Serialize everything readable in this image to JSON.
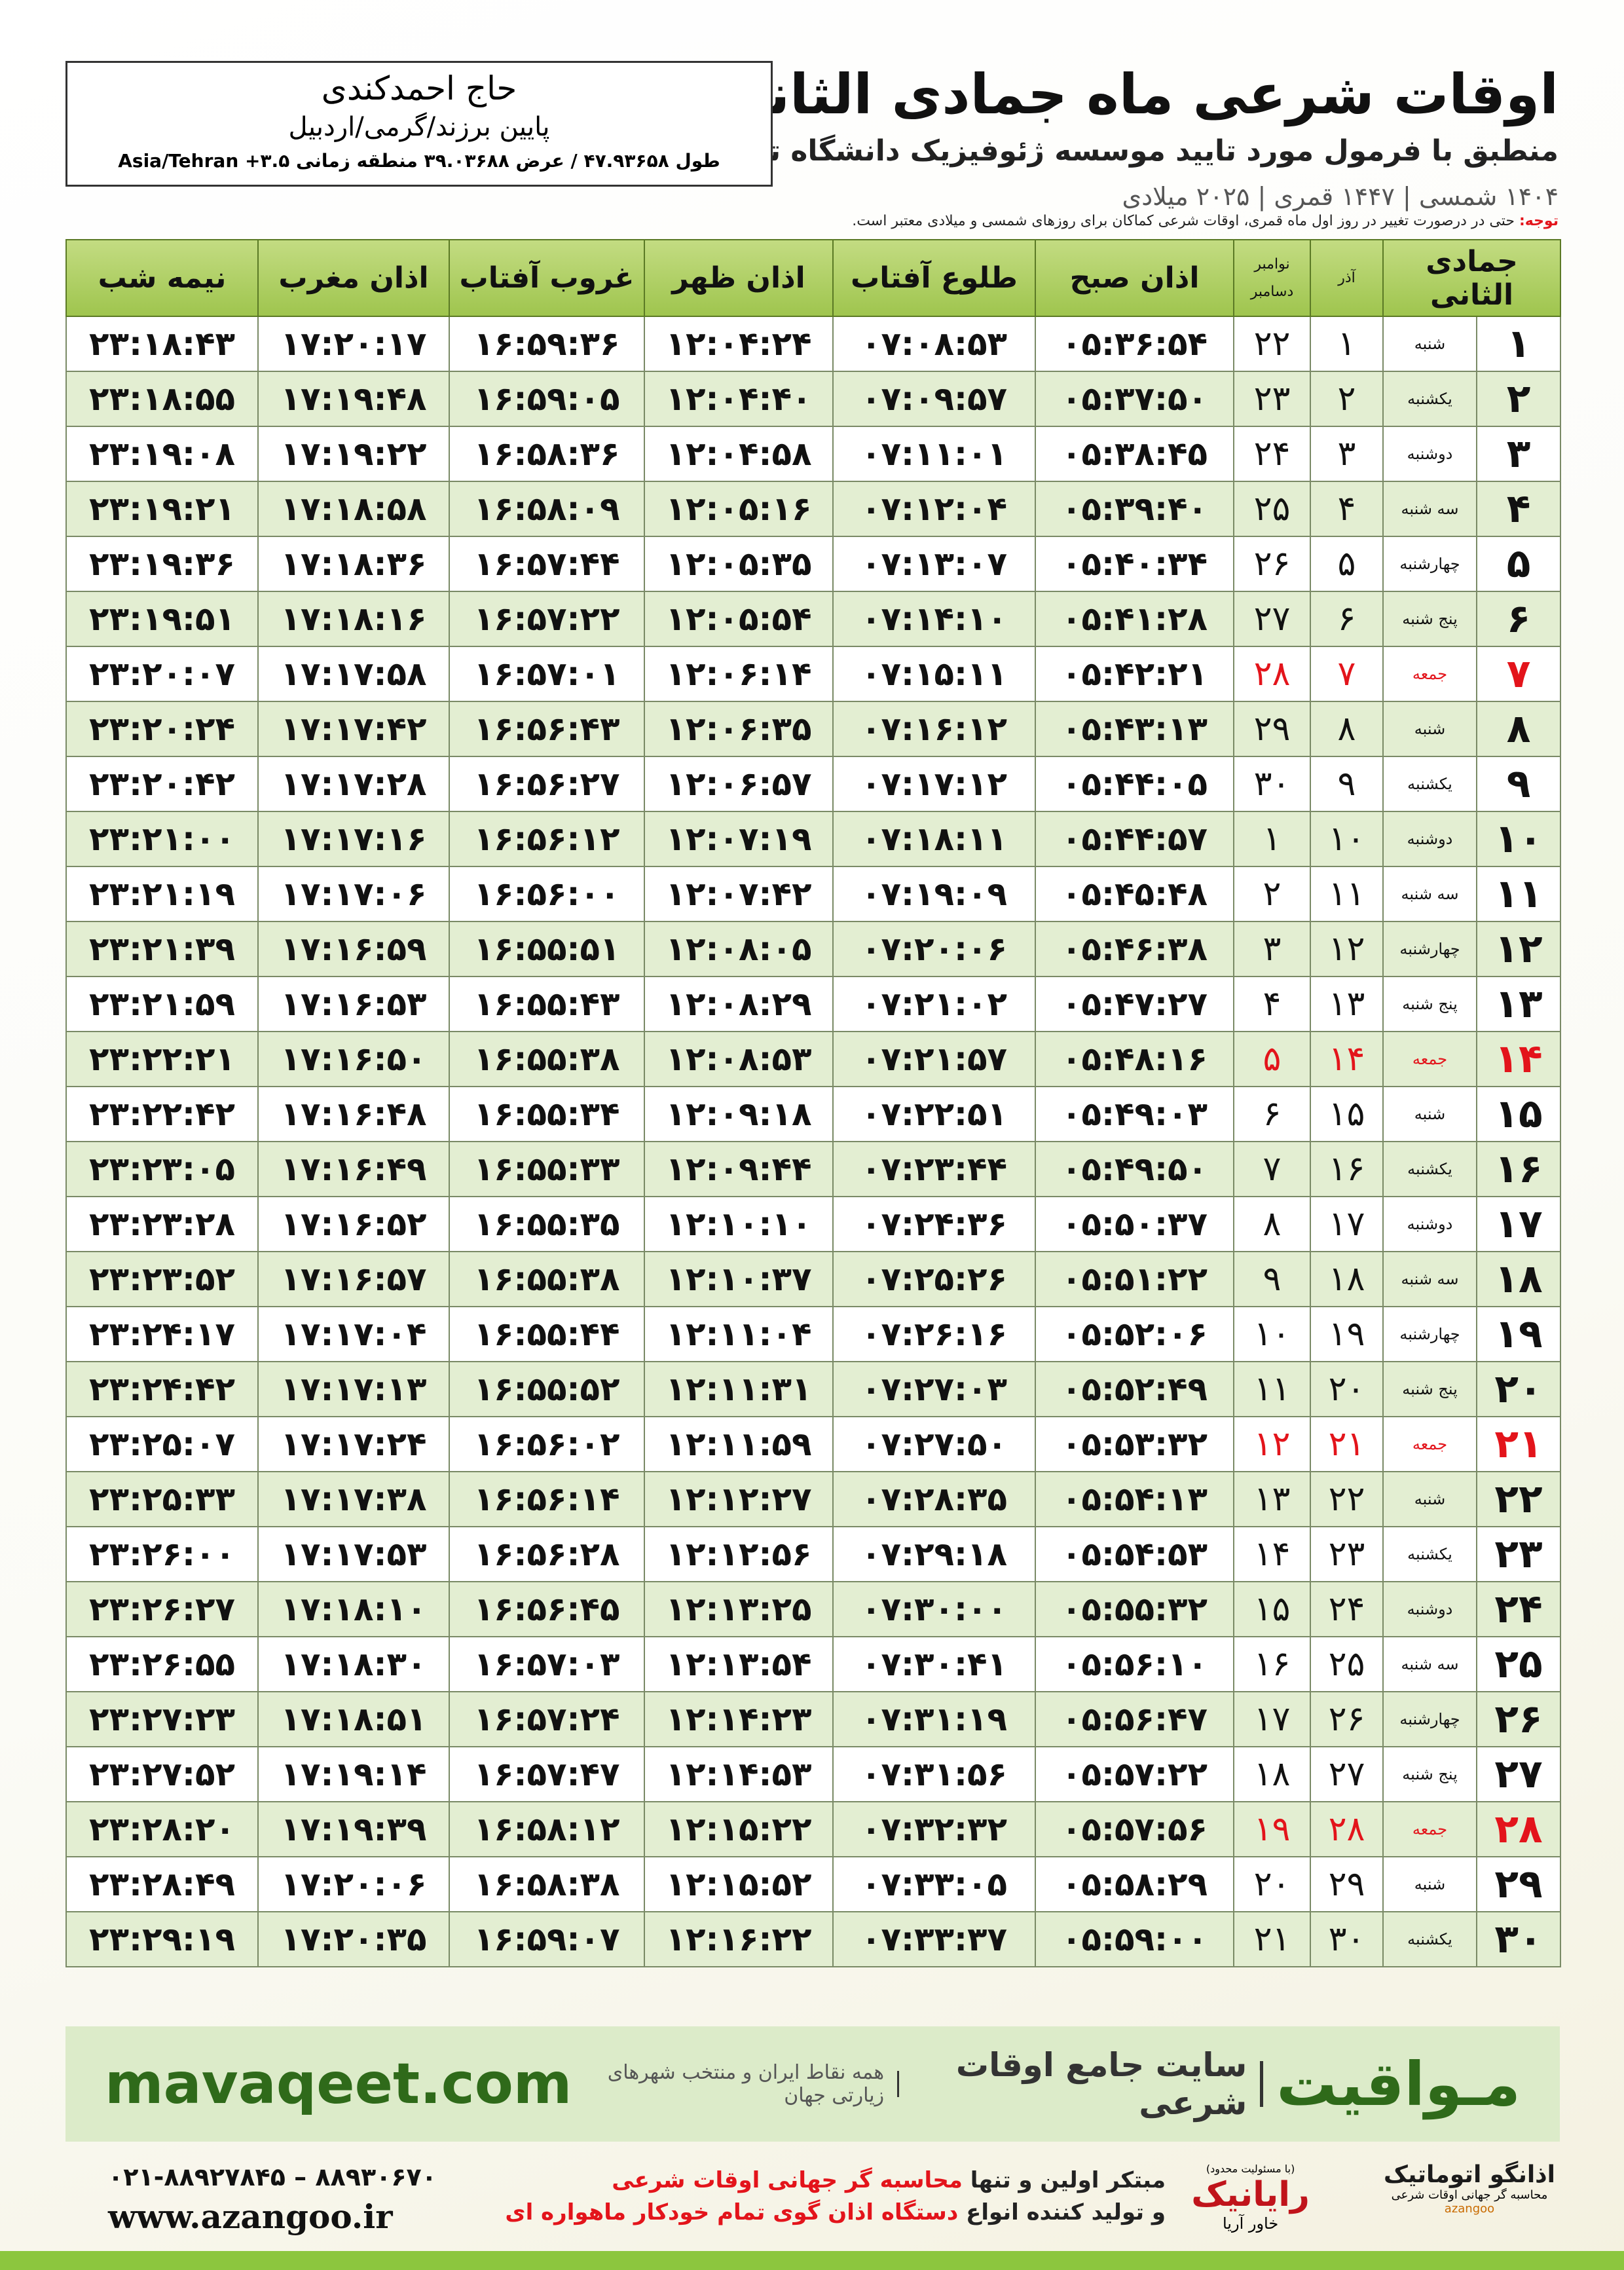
{
  "header": {
    "title": "اوقات شرعی ماه جمادی الثانی",
    "subtitle": "منطبق با فرمول مورد تایید موسسه ژئوفیزیک دانشگاه تهران",
    "years": "۱۴۰۴ شمسی | ۱۴۴۷ قمری | ۲۰۲۵ میلادی"
  },
  "location": {
    "name": "حاج احمدکندی",
    "path": "پایین برزند/گرمی/اردبیل",
    "coords": "طول ۴۷.۹۳۶۵۸ / عرض ۳۹.۰۳۶۸۸ منطقه زمانی ۳.۵+ Asia/Tehran"
  },
  "note": {
    "label": "توجه:",
    "text": "حتی در درصورت تغییر در روز اول ماه قمری، اوقات شرعی کماکان برای روزهای شمسی و میلادی معتبر است."
  },
  "table": {
    "headers": [
      "جمادی الثانی",
      "آذر",
      "نوامبر",
      "دسامبر",
      "اذان صبح",
      "طلوع آفتاب",
      "اذان ظهر",
      "غروب آفتاب",
      "اذان مغرب",
      "نیمه شب"
    ],
    "rows": [
      {
        "cells": [
          "۱",
          "شنبه",
          "۱",
          "۲۲",
          "۰۵:۳۶:۵۴",
          "۰۷:۰۸:۵۳",
          "۱۲:۰۴:۲۴",
          "۱۶:۵۹:۳۶",
          "۱۷:۲۰:۱۷",
          "۲۳:۱۸:۴۳"
        ]
      },
      {
        "cells": [
          "۲",
          "یکشنبه",
          "۲",
          "۲۳",
          "۰۵:۳۷:۵۰",
          "۰۷:۰۹:۵۷",
          "۱۲:۰۴:۴۰",
          "۱۶:۵۹:۰۵",
          "۱۷:۱۹:۴۸",
          "۲۳:۱۸:۵۵"
        ]
      },
      {
        "cells": [
          "۳",
          "دوشنبه",
          "۳",
          "۲۴",
          "۰۵:۳۸:۴۵",
          "۰۷:۱۱:۰۱",
          "۱۲:۰۴:۵۸",
          "۱۶:۵۸:۳۶",
          "۱۷:۱۹:۲۲",
          "۲۳:۱۹:۰۸"
        ]
      },
      {
        "cells": [
          "۴",
          "سه شنبه",
          "۴",
          "۲۵",
          "۰۵:۳۹:۴۰",
          "۰۷:۱۲:۰۴",
          "۱۲:۰۵:۱۶",
          "۱۶:۵۸:۰۹",
          "۱۷:۱۸:۵۸",
          "۲۳:۱۹:۲۱"
        ]
      },
      {
        "cells": [
          "۵",
          "چهارشنبه",
          "۵",
          "۲۶",
          "۰۵:۴۰:۳۴",
          "۰۷:۱۳:۰۷",
          "۱۲:۰۵:۳۵",
          "۱۶:۵۷:۴۴",
          "۱۷:۱۸:۳۶",
          "۲۳:۱۹:۳۶"
        ]
      },
      {
        "cells": [
          "۶",
          "پنج شنبه",
          "۶",
          "۲۷",
          "۰۵:۴۱:۲۸",
          "۰۷:۱۴:۱۰",
          "۱۲:۰۵:۵۴",
          "۱۶:۵۷:۲۲",
          "۱۷:۱۸:۱۶",
          "۲۳:۱۹:۵۱"
        ]
      },
      {
        "cells": [
          "۷",
          "جمعه",
          "۷",
          "۲۸",
          "۰۵:۴۲:۲۱",
          "۰۷:۱۵:۱۱",
          "۱۲:۰۶:۱۴",
          "۱۶:۵۷:۰۱",
          "۱۷:۱۷:۵۸",
          "۲۳:۲۰:۰۷"
        ],
        "color": "#e3141b"
      },
      {
        "cells": [
          "۸",
          "شنبه",
          "۸",
          "۲۹",
          "۰۵:۴۳:۱۳",
          "۰۷:۱۶:۱۲",
          "۱۲:۰۶:۳۵",
          "۱۶:۵۶:۴۳",
          "۱۷:۱۷:۴۲",
          "۲۳:۲۰:۲۴"
        ]
      },
      {
        "cells": [
          "۹",
          "یکشنبه",
          "۹",
          "۳۰",
          "۰۵:۴۴:۰۵",
          "۰۷:۱۷:۱۲",
          "۱۲:۰۶:۵۷",
          "۱۶:۵۶:۲۷",
          "۱۷:۱۷:۲۸",
          "۲۳:۲۰:۴۲"
        ]
      },
      {
        "cells": [
          "۱۰",
          "دوشنبه",
          "۱۰",
          "۱",
          "۰۵:۴۴:۵۷",
          "۰۷:۱۸:۱۱",
          "۱۲:۰۷:۱۹",
          "۱۶:۵۶:۱۲",
          "۱۷:۱۷:۱۶",
          "۲۳:۲۱:۰۰"
        ]
      },
      {
        "cells": [
          "۱۱",
          "سه شنبه",
          "۱۱",
          "۲",
          "۰۵:۴۵:۴۸",
          "۰۷:۱۹:۰۹",
          "۱۲:۰۷:۴۲",
          "۱۶:۵۶:۰۰",
          "۱۷:۱۷:۰۶",
          "۲۳:۲۱:۱۹"
        ]
      },
      {
        "cells": [
          "۱۲",
          "چهارشنبه",
          "۱۲",
          "۳",
          "۰۵:۴۶:۳۸",
          "۰۷:۲۰:۰۶",
          "۱۲:۰۸:۰۵",
          "۱۶:۵۵:۵۱",
          "۱۷:۱۶:۵۹",
          "۲۳:۲۱:۳۹"
        ]
      },
      {
        "cells": [
          "۱۳",
          "پنج شنبه",
          "۱۳",
          "۴",
          "۰۵:۴۷:۲۷",
          "۰۷:۲۱:۰۲",
          "۱۲:۰۸:۲۹",
          "۱۶:۵۵:۴۳",
          "۱۷:۱۶:۵۳",
          "۲۳:۲۱:۵۹"
        ]
      },
      {
        "cells": [
          "۱۴",
          "جمعه",
          "۱۴",
          "۵",
          "۰۵:۴۸:۱۶",
          "۰۷:۲۱:۵۷",
          "۱۲:۰۸:۵۳",
          "۱۶:۵۵:۳۸",
          "۱۷:۱۶:۵۰",
          "۲۳:۲۲:۲۱"
        ],
        "color": "#e3141b"
      },
      {
        "cells": [
          "۱۵",
          "شنبه",
          "۱۵",
          "۶",
          "۰۵:۴۹:۰۳",
          "۰۷:۲۲:۵۱",
          "۱۲:۰۹:۱۸",
          "۱۶:۵۵:۳۴",
          "۱۷:۱۶:۴۸",
          "۲۳:۲۲:۴۲"
        ]
      },
      {
        "cells": [
          "۱۶",
          "یکشنبه",
          "۱۶",
          "۷",
          "۰۵:۴۹:۵۰",
          "۰۷:۲۳:۴۴",
          "۱۲:۰۹:۴۴",
          "۱۶:۵۵:۳۳",
          "۱۷:۱۶:۴۹",
          "۲۳:۲۳:۰۵"
        ]
      },
      {
        "cells": [
          "۱۷",
          "دوشنبه",
          "۱۷",
          "۸",
          "۰۵:۵۰:۳۷",
          "۰۷:۲۴:۳۶",
          "۱۲:۱۰:۱۰",
          "۱۶:۵۵:۳۵",
          "۱۷:۱۶:۵۲",
          "۲۳:۲۳:۲۸"
        ]
      },
      {
        "cells": [
          "۱۸",
          "سه شنبه",
          "۱۸",
          "۹",
          "۰۵:۵۱:۲۲",
          "۰۷:۲۵:۲۶",
          "۱۲:۱۰:۳۷",
          "۱۶:۵۵:۳۸",
          "۱۷:۱۶:۵۷",
          "۲۳:۲۳:۵۲"
        ]
      },
      {
        "cells": [
          "۱۹",
          "چهارشنبه",
          "۱۹",
          "۱۰",
          "۰۵:۵۲:۰۶",
          "۰۷:۲۶:۱۶",
          "۱۲:۱۱:۰۴",
          "۱۶:۵۵:۴۴",
          "۱۷:۱۷:۰۴",
          "۲۳:۲۴:۱۷"
        ]
      },
      {
        "cells": [
          "۲۰",
          "پنج شنبه",
          "۲۰",
          "۱۱",
          "۰۵:۵۲:۴۹",
          "۰۷:۲۷:۰۳",
          "۱۲:۱۱:۳۱",
          "۱۶:۵۵:۵۲",
          "۱۷:۱۷:۱۳",
          "۲۳:۲۴:۴۲"
        ]
      },
      {
        "cells": [
          "۲۱",
          "جمعه",
          "۲۱",
          "۱۲",
          "۰۵:۵۳:۳۲",
          "۰۷:۲۷:۵۰",
          "۱۲:۱۱:۵۹",
          "۱۶:۵۶:۰۲",
          "۱۷:۱۷:۲۴",
          "۲۳:۲۵:۰۷"
        ],
        "color": "#e3141b"
      },
      {
        "cells": [
          "۲۲",
          "شنبه",
          "۲۲",
          "۱۳",
          "۰۵:۵۴:۱۳",
          "۰۷:۲۸:۳۵",
          "۱۲:۱۲:۲۷",
          "۱۶:۵۶:۱۴",
          "۱۷:۱۷:۳۸",
          "۲۳:۲۵:۳۳"
        ]
      },
      {
        "cells": [
          "۲۳",
          "یکشنبه",
          "۲۳",
          "۱۴",
          "۰۵:۵۴:۵۳",
          "۰۷:۲۹:۱۸",
          "۱۲:۱۲:۵۶",
          "۱۶:۵۶:۲۸",
          "۱۷:۱۷:۵۳",
          "۲۳:۲۶:۰۰"
        ]
      },
      {
        "cells": [
          "۲۴",
          "دوشنبه",
          "۲۴",
          "۱۵",
          "۰۵:۵۵:۳۲",
          "۰۷:۳۰:۰۰",
          "۱۲:۱۳:۲۵",
          "۱۶:۵۶:۴۵",
          "۱۷:۱۸:۱۰",
          "۲۳:۲۶:۲۷"
        ]
      },
      {
        "cells": [
          "۲۵",
          "سه شنبه",
          "۲۵",
          "۱۶",
          "۰۵:۵۶:۱۰",
          "۰۷:۳۰:۴۱",
          "۱۲:۱۳:۵۴",
          "۱۶:۵۷:۰۳",
          "۱۷:۱۸:۳۰",
          "۲۳:۲۶:۵۵"
        ]
      },
      {
        "cells": [
          "۲۶",
          "چهارشنبه",
          "۲۶",
          "۱۷",
          "۰۵:۵۶:۴۷",
          "۰۷:۳۱:۱۹",
          "۱۲:۱۴:۲۳",
          "۱۶:۵۷:۲۴",
          "۱۷:۱۸:۵۱",
          "۲۳:۲۷:۲۳"
        ]
      },
      {
        "cells": [
          "۲۷",
          "پنج شنبه",
          "۲۷",
          "۱۸",
          "۰۵:۵۷:۲۲",
          "۰۷:۳۱:۵۶",
          "۱۲:۱۴:۵۳",
          "۱۶:۵۷:۴۷",
          "۱۷:۱۹:۱۴",
          "۲۳:۲۷:۵۲"
        ]
      },
      {
        "cells": [
          "۲۸",
          "جمعه",
          "۲۸",
          "۱۹",
          "۰۵:۵۷:۵۶",
          "۰۷:۳۲:۳۲",
          "۱۲:۱۵:۲۲",
          "۱۶:۵۸:۱۲",
          "۱۷:۱۹:۳۹",
          "۲۳:۲۸:۲۰"
        ],
        "color": "#e3141b"
      },
      {
        "cells": [
          "۲۹",
          "شنبه",
          "۲۹",
          "۲۰",
          "۰۵:۵۸:۲۹",
          "۰۷:۳۳:۰۵",
          "۱۲:۱۵:۵۲",
          "۱۶:۵۸:۳۸",
          "۱۷:۲۰:۰۶",
          "۲۳:۲۸:۴۹"
        ]
      },
      {
        "cells": [
          "۳۰",
          "یکشنبه",
          "۳۰",
          "۲۱",
          "۰۵:۵۹:۰۰",
          "۰۷:۳۳:۳۷",
          "۱۲:۱۶:۲۲",
          "۱۶:۵۹:۰۷",
          "۱۷:۲۰:۳۵",
          "۲۳:۲۹:۱۹"
        ]
      }
    ]
  },
  "banner": {
    "brand": "مـواقیت",
    "slogan": "سایت جامع اوقات شرعی",
    "scope": "همه نقاط ایران و منتخب شهرهای زیارتی جهان",
    "url": "mavaqeet.com"
  },
  "footer": {
    "line1_start": "مبتکر اولین و تنها",
    "line1_red": "محاسبه گر جهانی اوقات شرعی",
    "line2_start": "و تولید کننده انواع",
    "line2_red": "دستگاه اذان گوی تمام خودکار ماهواره ای",
    "phone": "۰۲۱-۸۸۹۲۷۸۴۵ – ۸۸۹۳۰۶۷۰",
    "website": "www.azangoo.ir",
    "logo1_note": "(با مسئولیت محدود)",
    "logo1_name": "رایانیک",
    "logo1_sub": "خاور آریا",
    "logo2_name": "اذانگو اتوماتیک",
    "logo2_sub": "محاسبه گر جهانی اوقات شرعی",
    "logo2_latin": "azangoo"
  }
}
